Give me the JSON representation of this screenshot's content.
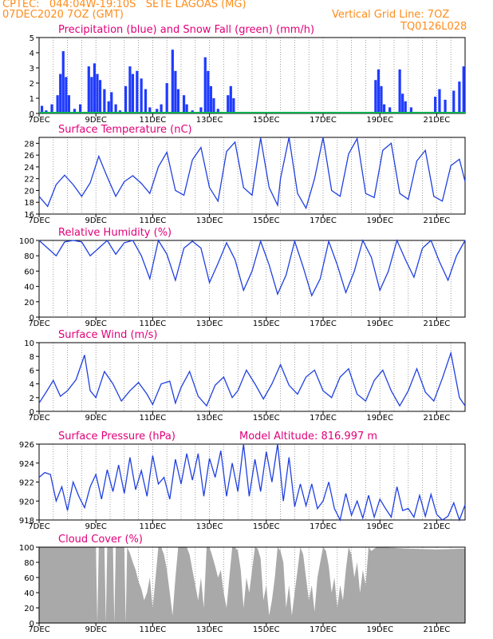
{
  "header": {
    "station": "CPTEC:   044:04W-19:10S   SETE LAGOAS (MG)",
    "date": "07DEC2020 7OZ (GMT)",
    "grid_note": "Vertical Grid Line: 7OZ",
    "code": "TQ0126L028"
  },
  "x_labels": [
    "7DEC",
    "9DEC",
    "11DEC",
    "13DEC",
    "15DEC",
    "17DEC",
    "19DEC",
    "21DEC"
  ],
  "x_domain": [
    0,
    15
  ],
  "chart_data": [
    {
      "id": "precip",
      "type": "bar",
      "title": "Precipitation (blue) and Snow Fall (green) (mm/h)",
      "ylim": [
        0,
        5
      ],
      "yticks": [
        0,
        1,
        2,
        3,
        4,
        5
      ],
      "color": "#1f3bff",
      "snow_color": "#00b050",
      "bars": [
        [
          0.1,
          0.5
        ],
        [
          0.25,
          0.2
        ],
        [
          0.45,
          0.6
        ],
        [
          0.65,
          1.2
        ],
        [
          0.75,
          2.6
        ],
        [
          0.85,
          4.1
        ],
        [
          0.95,
          2.4
        ],
        [
          1.05,
          1.2
        ],
        [
          1.25,
          0.3
        ],
        [
          1.45,
          0.6
        ],
        [
          1.75,
          3.1
        ],
        [
          1.85,
          2.4
        ],
        [
          1.95,
          3.3
        ],
        [
          2.05,
          2.6
        ],
        [
          2.15,
          2.2
        ],
        [
          2.3,
          1.6
        ],
        [
          2.45,
          0.8
        ],
        [
          2.55,
          1.4
        ],
        [
          2.7,
          0.6
        ],
        [
          2.85,
          0.2
        ],
        [
          3.05,
          1.8
        ],
        [
          3.2,
          3.1
        ],
        [
          3.3,
          2.6
        ],
        [
          3.45,
          2.8
        ],
        [
          3.6,
          2.3
        ],
        [
          3.75,
          1.6
        ],
        [
          3.9,
          0.4
        ],
        [
          4.15,
          0.3
        ],
        [
          4.3,
          0.6
        ],
        [
          4.5,
          2.0
        ],
        [
          4.7,
          4.2
        ],
        [
          4.8,
          2.8
        ],
        [
          4.9,
          1.6
        ],
        [
          5.1,
          1.2
        ],
        [
          5.2,
          0.6
        ],
        [
          5.4,
          0.2
        ],
        [
          5.7,
          0.4
        ],
        [
          5.85,
          3.7
        ],
        [
          5.95,
          2.8
        ],
        [
          6.05,
          1.8
        ],
        [
          6.15,
          1.0
        ],
        [
          6.3,
          0.3
        ],
        [
          6.65,
          1.2
        ],
        [
          6.75,
          1.8
        ],
        [
          6.85,
          1.0
        ],
        [
          11.85,
          2.2
        ],
        [
          11.95,
          2.9
        ],
        [
          12.05,
          1.8
        ],
        [
          12.15,
          0.6
        ],
        [
          12.35,
          0.4
        ],
        [
          12.7,
          2.9
        ],
        [
          12.8,
          1.3
        ],
        [
          12.9,
          0.8
        ],
        [
          13.1,
          0.4
        ],
        [
          13.95,
          1.1
        ],
        [
          14.1,
          1.6
        ],
        [
          14.3,
          0.9
        ],
        [
          14.6,
          1.5
        ],
        [
          14.8,
          2.1
        ],
        [
          14.95,
          3.1
        ]
      ]
    },
    {
      "id": "temp",
      "type": "line",
      "title": "Surface Temperature (nC)",
      "ylim": [
        16,
        29
      ],
      "yticks": [
        16,
        18,
        20,
        22,
        24,
        26,
        28
      ],
      "color": "#2040e0",
      "x": [
        0,
        0.3,
        0.6,
        0.9,
        1.2,
        1.5,
        1.8,
        2.1,
        2.4,
        2.7,
        3.0,
        3.3,
        3.6,
        3.9,
        4.2,
        4.5,
        4.8,
        5.1,
        5.4,
        5.7,
        6.0,
        6.3,
        6.6,
        6.9,
        7.2,
        7.5,
        7.8,
        8.1,
        8.4,
        8.5,
        8.8,
        9.1,
        9.4,
        9.7,
        10.0,
        10.3,
        10.6,
        10.9,
        11.2,
        11.5,
        11.8,
        12.1,
        12.4,
        12.7,
        13.0,
        13.3,
        13.6,
        13.9,
        14.2,
        14.5,
        14.8,
        15.0
      ],
      "values": [
        19,
        17.3,
        21,
        22.6,
        21,
        19,
        21.3,
        25.8,
        22.3,
        19,
        21.5,
        22.5,
        21.2,
        19.5,
        24,
        26.5,
        20,
        19.2,
        25.2,
        27.3,
        20.5,
        18.2,
        26.6,
        28.2,
        20.5,
        19.2,
        28.9,
        20.5,
        17.5,
        22,
        29.0,
        19.5,
        17,
        22,
        29.0,
        20,
        19,
        26.2,
        28.8,
        19.5,
        18.8,
        26.8,
        28.0,
        19.5,
        18.5,
        25,
        26.8,
        19,
        18.2,
        24.2,
        25.3,
        21.5
      ]
    },
    {
      "id": "rh",
      "type": "line",
      "title": "Relative Humidity (%)",
      "ylim": [
        0,
        100
      ],
      "yticks": [
        0,
        20,
        40,
        60,
        80,
        100
      ],
      "color": "#2040e0",
      "x": [
        0,
        0.3,
        0.6,
        0.9,
        1.2,
        1.5,
        1.8,
        2.1,
        2.4,
        2.7,
        3.0,
        3.3,
        3.6,
        3.9,
        4.2,
        4.5,
        4.8,
        5.1,
        5.4,
        5.7,
        6.0,
        6.3,
        6.6,
        6.9,
        7.2,
        7.5,
        7.8,
        8.1,
        8.4,
        8.7,
        9.0,
        9.3,
        9.6,
        9.9,
        10.2,
        10.5,
        10.8,
        11.1,
        11.4,
        11.7,
        12.0,
        12.3,
        12.6,
        12.9,
        13.2,
        13.5,
        13.8,
        14.1,
        14.4,
        14.7,
        15.0
      ],
      "values": [
        100,
        90,
        80,
        98,
        100,
        98,
        80,
        90,
        100,
        82,
        97,
        100,
        80,
        50,
        100,
        82,
        48,
        90,
        99,
        90,
        45,
        70,
        97,
        75,
        35,
        60,
        99,
        68,
        30,
        55,
        99,
        65,
        28,
        50,
        99,
        68,
        32,
        60,
        100,
        78,
        35,
        60,
        100,
        75,
        52,
        90,
        100,
        72,
        48,
        80,
        100
      ]
    },
    {
      "id": "wind",
      "type": "line",
      "title": "Surface Wind (m/s)",
      "ylim": [
        0,
        10
      ],
      "yticks": [
        0,
        2,
        4,
        6,
        8,
        10
      ],
      "color": "#2040e0",
      "x": [
        0,
        0.25,
        0.5,
        0.75,
        1.0,
        1.3,
        1.6,
        1.8,
        2.0,
        2.3,
        2.6,
        2.9,
        3.2,
        3.5,
        3.8,
        4.0,
        4.3,
        4.6,
        4.8,
        5.0,
        5.3,
        5.6,
        5.9,
        6.2,
        6.5,
        6.8,
        7.0,
        7.3,
        7.6,
        7.9,
        8.2,
        8.5,
        8.8,
        9.1,
        9.4,
        9.7,
        10.0,
        10.3,
        10.6,
        10.9,
        11.2,
        11.5,
        11.8,
        12.1,
        12.4,
        12.7,
        13.0,
        13.3,
        13.6,
        13.9,
        14.2,
        14.5,
        14.8,
        15.0
      ],
      "values": [
        1.2,
        2.8,
        4.5,
        2.2,
        3.0,
        4.6,
        8.2,
        3.0,
        2.0,
        5.8,
        4.0,
        1.5,
        3.0,
        4.2,
        2.5,
        1.0,
        4.0,
        4.4,
        1.2,
        3.5,
        5.8,
        2.2,
        0.8,
        3.8,
        5.0,
        2.0,
        3.0,
        6.0,
        4.0,
        1.8,
        4.0,
        6.8,
        3.8,
        2.5,
        5.0,
        6.0,
        3.0,
        2.0,
        5.0,
        6.2,
        2.5,
        1.5,
        4.5,
        6.0,
        3.0,
        0.8,
        3.0,
        6.2,
        2.8,
        1.5,
        4.8,
        8.5,
        2.0,
        0.8
      ]
    },
    {
      "id": "pressure",
      "type": "line",
      "title": "Surface Pressure (hPa)",
      "annotation": "Model Altitude: 816.997 m",
      "ylim": [
        918,
        926
      ],
      "yticks": [
        918,
        920,
        922,
        924,
        926
      ],
      "color": "#2040e0",
      "x": [
        0,
        0.2,
        0.4,
        0.6,
        0.8,
        1.0,
        1.2,
        1.4,
        1.6,
        1.8,
        2.0,
        2.2,
        2.4,
        2.6,
        2.8,
        3.0,
        3.2,
        3.4,
        3.6,
        3.8,
        4.0,
        4.2,
        4.4,
        4.6,
        4.8,
        5.0,
        5.2,
        5.4,
        5.6,
        5.8,
        6.0,
        6.2,
        6.4,
        6.6,
        6.8,
        7.0,
        7.2,
        7.4,
        7.6,
        7.8,
        8.0,
        8.2,
        8.4,
        8.6,
        8.8,
        9.0,
        9.2,
        9.4,
        9.6,
        9.8,
        10.0,
        10.2,
        10.4,
        10.6,
        10.8,
        11.0,
        11.2,
        11.4,
        11.6,
        11.8,
        12.0,
        12.2,
        12.4,
        12.6,
        12.8,
        13.0,
        13.2,
        13.4,
        13.6,
        13.8,
        14.0,
        14.2,
        14.4,
        14.6,
        14.8,
        15.0
      ],
      "values": [
        922.5,
        923,
        922.8,
        920,
        921.5,
        919,
        922,
        920.5,
        919.3,
        921.5,
        922.8,
        920.2,
        923.3,
        921,
        923.8,
        920.8,
        924.6,
        921.2,
        923.2,
        920.5,
        924.8,
        921.8,
        922.5,
        920.2,
        924.4,
        921.8,
        925.0,
        922.2,
        925.0,
        920.5,
        924.5,
        922.5,
        925.3,
        920.5,
        924.0,
        921.0,
        926.3,
        920.5,
        924.4,
        921.0,
        925.2,
        922.0,
        926.2,
        920.0,
        924.6,
        919.4,
        921.8,
        919.5,
        921.8,
        919.2,
        920.0,
        922.0,
        919.2,
        918.0,
        920.8,
        918.5,
        920.0,
        918.2,
        920.6,
        918.3,
        920.2,
        919.2,
        918.3,
        921.5,
        919.0,
        919.2,
        918.3,
        920.6,
        918.4,
        920.7,
        918.6,
        918.0,
        918.4,
        919.8,
        918.0,
        919.6
      ]
    },
    {
      "id": "cloud",
      "type": "area",
      "title": "Cloud Cover (%)",
      "ylim": [
        0,
        100
      ],
      "yticks": [
        0,
        20,
        40,
        60,
        80,
        100
      ],
      "color": "#a9a9a9",
      "x": [
        0,
        2.0,
        2.05,
        2.1,
        2.3,
        2.35,
        2.4,
        2.6,
        2.65,
        2.7,
        2.8,
        2.9,
        3.0,
        3.05,
        3.1,
        3.2,
        3.3,
        3.4,
        3.5,
        3.6,
        3.7,
        3.8,
        3.9,
        4.0,
        4.1,
        4.2,
        4.3,
        4.4,
        4.5,
        4.6,
        4.7,
        4.8,
        4.9,
        5.0,
        5.1,
        5.2,
        5.3,
        5.4,
        5.5,
        5.6,
        5.7,
        5.8,
        5.9,
        6.0,
        6.1,
        6.2,
        6.3,
        6.4,
        6.5,
        6.6,
        6.7,
        6.8,
        6.9,
        7.0,
        7.1,
        7.2,
        7.3,
        7.4,
        7.5,
        7.6,
        7.7,
        7.8,
        7.9,
        8.0,
        8.1,
        8.2,
        8.3,
        8.4,
        8.5,
        8.6,
        8.7,
        8.8,
        8.9,
        9.0,
        9.1,
        9.2,
        9.3,
        9.4,
        9.5,
        9.6,
        9.7,
        9.8,
        9.9,
        10.0,
        10.1,
        10.2,
        10.3,
        10.4,
        10.5,
        10.6,
        10.7,
        10.8,
        10.9,
        11.0,
        11.1,
        11.2,
        11.3,
        11.4,
        11.5,
        11.6,
        11.7,
        11.8,
        11.9,
        12.0,
        13.0,
        14.0,
        15.0
      ],
      "values": [
        100,
        100,
        0,
        100,
        100,
        0,
        100,
        100,
        0,
        100,
        100,
        100,
        100,
        0,
        100,
        92,
        80,
        70,
        55,
        45,
        30,
        40,
        60,
        20,
        60,
        100,
        100,
        90,
        70,
        40,
        10,
        60,
        100,
        100,
        100,
        100,
        90,
        70,
        50,
        30,
        60,
        20,
        100,
        100,
        88,
        75,
        60,
        70,
        40,
        20,
        60,
        100,
        100,
        95,
        70,
        20,
        60,
        40,
        70,
        100,
        98,
        85,
        30,
        50,
        10,
        30,
        60,
        100,
        95,
        80,
        20,
        50,
        10,
        40,
        70,
        100,
        90,
        60,
        30,
        50,
        15,
        60,
        80,
        100,
        95,
        75,
        40,
        60,
        20,
        50,
        30,
        70,
        100,
        90,
        60,
        80,
        40,
        70,
        50,
        100,
        95,
        98,
        100,
        100,
        98,
        97,
        98
      ]
    }
  ]
}
